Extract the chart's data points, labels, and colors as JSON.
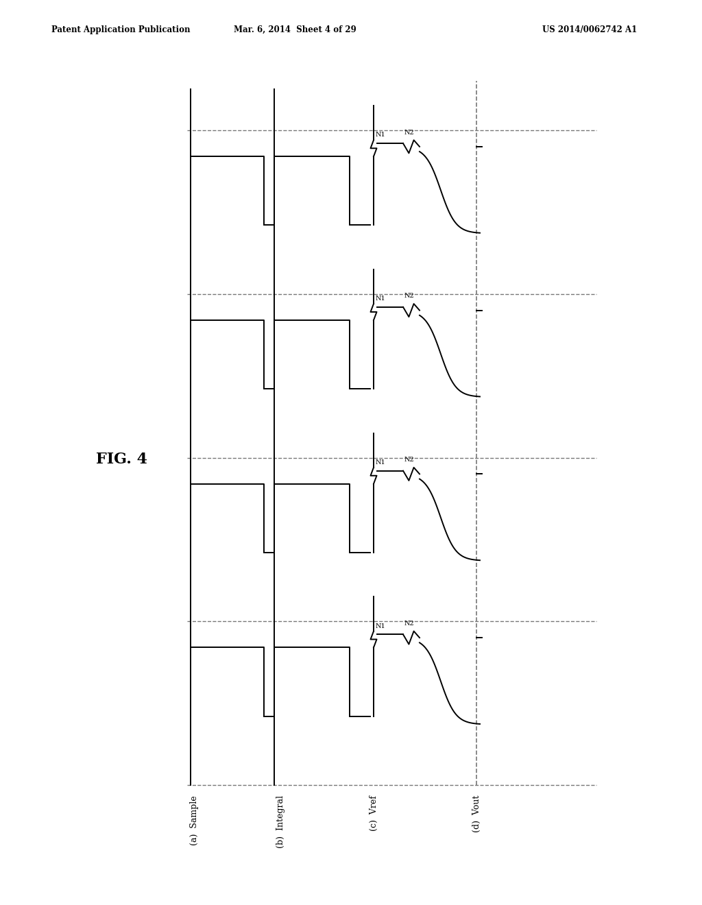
{
  "header_left": "Patent Application Publication",
  "header_mid": "Mar. 6, 2014  Sheet 4 of 29",
  "header_right": "US 2014/0062742 A1",
  "fig_label": "FIG. 4",
  "signal_labels": [
    "(a)  Sample",
    "(b)  Integral",
    "(c)  Vref",
    "(d)  Vout"
  ],
  "bg_color": "#ffffff",
  "line_color": "#000000",
  "dashed_color": "#777777",
  "n_periods": 4,
  "lw": 1.4
}
